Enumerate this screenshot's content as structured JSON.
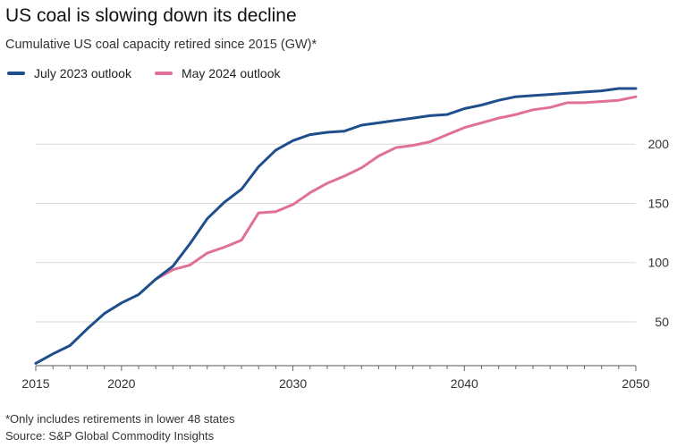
{
  "title": "US coal is slowing down its decline",
  "subtitle": "Cumulative US coal capacity retired since 2015 (GW)*",
  "footnote": "*Only includes retirements in lower 48 states",
  "source": "Source: S&P Global Commodity Insights",
  "chart_data": {
    "type": "line",
    "title": "US coal is slowing down its decline",
    "subtitle": "Cumulative US coal capacity retired since 2015 (GW)*",
    "xlabel": "",
    "ylabel": "",
    "xlim": [
      2015,
      2050
    ],
    "ylim": [
      13,
      250
    ],
    "x_ticks": [
      2015,
      2020,
      2030,
      2040,
      2050
    ],
    "y_ticks": [
      50,
      100,
      150,
      200
    ],
    "y_axis_side": "right",
    "grid": "horizontal",
    "legend_position": "top-left",
    "series": [
      {
        "name": "July 2023 outlook",
        "color": "#1f4e8c",
        "x": [
          2015,
          2016,
          2017,
          2018,
          2019,
          2020,
          2021,
          2022,
          2023,
          2024,
          2025,
          2026,
          2027,
          2028,
          2029,
          2030,
          2031,
          2032,
          2033,
          2034,
          2035,
          2036,
          2037,
          2038,
          2039,
          2040,
          2041,
          2042,
          2043,
          2044,
          2045,
          2046,
          2047,
          2048,
          2049,
          2050
        ],
        "y": [
          15,
          23,
          30,
          44,
          57,
          66,
          73,
          86,
          97,
          116,
          137,
          151,
          162,
          181,
          195,
          203,
          208,
          210,
          211,
          216,
          218,
          220,
          222,
          224,
          225,
          230,
          233,
          237,
          240,
          241,
          242,
          243,
          244,
          245,
          247,
          247
        ]
      },
      {
        "name": "May 2024 outlook",
        "color": "#e0709a",
        "x": [
          2022,
          2023,
          2024,
          2025,
          2026,
          2027,
          2028,
          2029,
          2030,
          2031,
          2032,
          2033,
          2034,
          2035,
          2036,
          2037,
          2038,
          2039,
          2040,
          2041,
          2042,
          2043,
          2044,
          2045,
          2046,
          2047,
          2048,
          2049,
          2050
        ],
        "y": [
          86,
          94,
          98,
          108,
          113,
          119,
          142,
          143,
          149,
          159,
          167,
          173,
          180,
          190,
          197,
          199,
          202,
          208,
          214,
          218,
          222,
          225,
          229,
          231,
          235,
          235,
          236,
          237,
          240
        ]
      }
    ]
  }
}
